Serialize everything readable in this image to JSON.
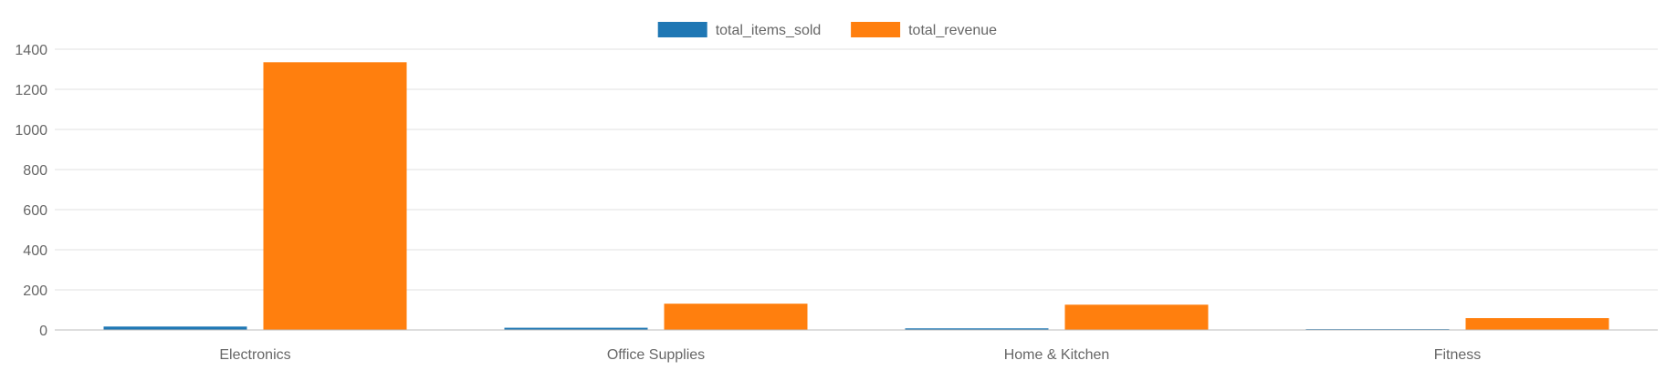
{
  "chart_data": {
    "type": "bar",
    "categories": [
      "Electronics",
      "Office Supplies",
      "Home & Kitchen",
      "Fitness"
    ],
    "series": [
      {
        "name": "total_items_sold",
        "color": "#1f77b4",
        "values": [
          17,
          11,
          8,
          4
        ]
      },
      {
        "name": "total_revenue",
        "color": "#ff7f0e",
        "values": [
          1335,
          131,
          126,
          59
        ]
      }
    ],
    "ylim": [
      0,
      1400
    ],
    "yticks": [
      0,
      200,
      400,
      600,
      800,
      1000,
      1200,
      1400
    ],
    "grid": true,
    "legend_position": "top-center"
  }
}
